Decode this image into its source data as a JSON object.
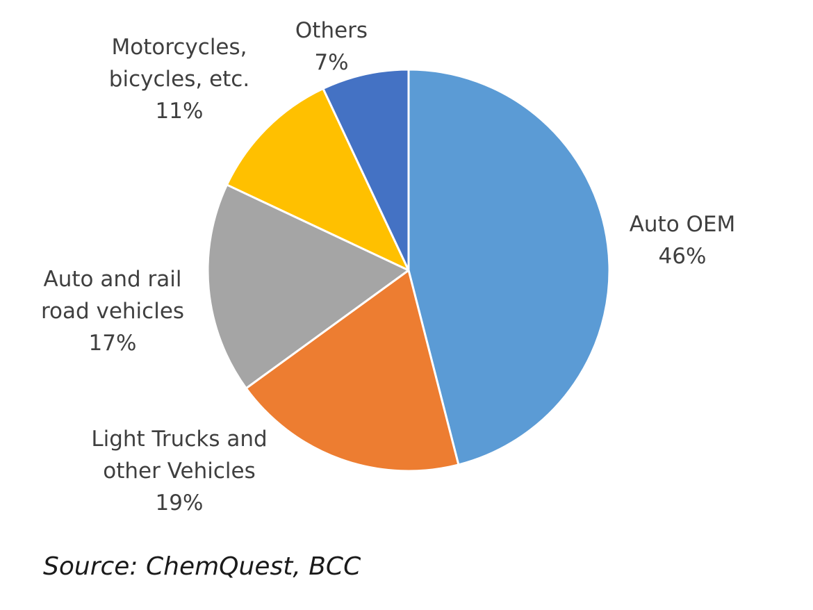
{
  "chart_data": {
    "type": "pie",
    "title": "",
    "start_angle_deg": 0,
    "direction": "clockwise",
    "slices": [
      {
        "name": "Auto OEM",
        "label_lines": [
          "Auto OEM"
        ],
        "value": 46,
        "value_label": "46%",
        "color": "#5B9BD5"
      },
      {
        "name": "Light Trucks and other Vehicles",
        "label_lines": [
          "Light Trucks and",
          "other Vehicles"
        ],
        "value": 19,
        "value_label": "19%",
        "color": "#ED7D31"
      },
      {
        "name": "Auto and rail road vehicles",
        "label_lines": [
          "Auto and rail",
          "road vehicles"
        ],
        "value": 17,
        "value_label": "17%",
        "color": "#A5A5A5"
      },
      {
        "name": "Motorcycles, bicycles, etc.",
        "label_lines": [
          "Motorcycles,",
          "bicycles, etc."
        ],
        "value": 11,
        "value_label": "11%",
        "color": "#FFC000"
      },
      {
        "name": "Others",
        "label_lines": [
          "Others"
        ],
        "value": 7,
        "value_label": "7%",
        "color": "#4472C4"
      }
    ]
  },
  "source": "Source: ChemQuest, BCC"
}
